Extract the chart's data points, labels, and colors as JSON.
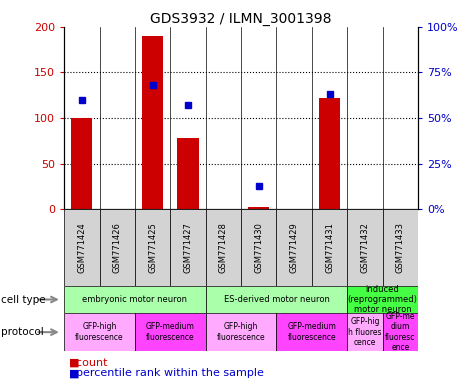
{
  "title": "GDS3932 / ILMN_3001398",
  "samples": [
    "GSM771424",
    "GSM771426",
    "GSM771425",
    "GSM771427",
    "GSM771428",
    "GSM771430",
    "GSM771429",
    "GSM771431",
    "GSM771432",
    "GSM771433"
  ],
  "counts": [
    100,
    0,
    190,
    78,
    0,
    3,
    0,
    122,
    0,
    0
  ],
  "percentile_ranks": [
    60,
    0,
    68,
    57,
    0,
    13,
    0,
    63,
    0,
    0
  ],
  "bar_color": "#cc0000",
  "dot_color": "#0000cc",
  "ylim_left": [
    0,
    200
  ],
  "ylim_right": [
    0,
    100
  ],
  "yticks_left": [
    0,
    50,
    100,
    150,
    200
  ],
  "yticks_right": [
    0,
    25,
    50,
    75,
    100
  ],
  "ytick_labels_left": [
    "0",
    "50",
    "100",
    "150",
    "200"
  ],
  "ytick_labels_right": [
    "0%",
    "25%",
    "50%",
    "75%",
    "100%"
  ],
  "cell_type_groups": [
    {
      "label": "embryonic motor neuron",
      "start": 0,
      "end": 3,
      "color": "#aaffaa"
    },
    {
      "label": "ES-derived motor neuron",
      "start": 4,
      "end": 7,
      "color": "#aaffaa"
    },
    {
      "label": "induced\n(reprogrammed)\nmotor neuron",
      "start": 8,
      "end": 9,
      "color": "#44ff44"
    }
  ],
  "protocol_groups": [
    {
      "label": "GFP-high\nfluorescence",
      "start": 0,
      "end": 1,
      "color": "#ffaaff"
    },
    {
      "label": "GFP-medium\nfluorescence",
      "start": 2,
      "end": 3,
      "color": "#ff44ff"
    },
    {
      "label": "GFP-high\nfluorescence",
      "start": 4,
      "end": 5,
      "color": "#ffaaff"
    },
    {
      "label": "GFP-medium\nfluorescence",
      "start": 6,
      "end": 7,
      "color": "#ff44ff"
    },
    {
      "label": "GFP-hig\nh fluores\ncence",
      "start": 8,
      "end": 8,
      "color": "#ffaaff"
    },
    {
      "label": "GFP-me\ndium\nfluoresc\nence",
      "start": 9,
      "end": 9,
      "color": "#ff44ff"
    }
  ],
  "legend_count_color": "#cc0000",
  "legend_dot_color": "#0000cc",
  "sample_bg_color": "#d3d3d3",
  "bar_width": 0.6,
  "fig_width": 4.75,
  "fig_height": 3.84,
  "dpi": 100
}
